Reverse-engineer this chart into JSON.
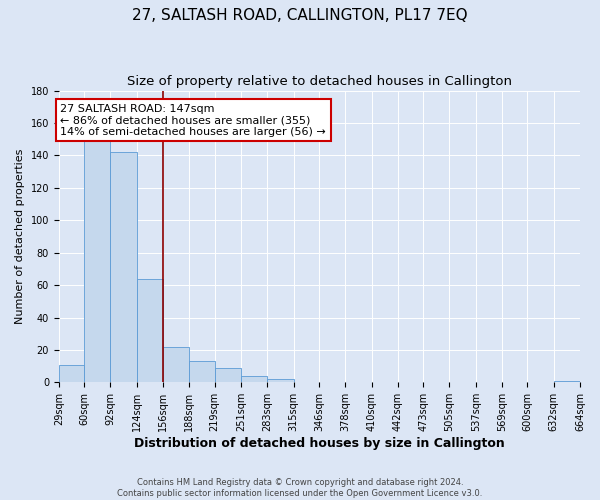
{
  "title": "27, SALTASH ROAD, CALLINGTON, PL17 7EQ",
  "subtitle": "Size of property relative to detached houses in Callington",
  "xlabel": "Distribution of detached houses by size in Callington",
  "ylabel": "Number of detached properties",
  "footer_lines": [
    "Contains HM Land Registry data © Crown copyright and database right 2024.",
    "Contains public sector information licensed under the Open Government Licence v3.0."
  ],
  "bin_edges": [
    29,
    60,
    92,
    124,
    156,
    188,
    219,
    251,
    283,
    315,
    346,
    378,
    410,
    442,
    473,
    505,
    537,
    569,
    600,
    632,
    664
  ],
  "bin_labels": [
    "29sqm",
    "60sqm",
    "92sqm",
    "124sqm",
    "156sqm",
    "188sqm",
    "219sqm",
    "251sqm",
    "283sqm",
    "315sqm",
    "346sqm",
    "378sqm",
    "410sqm",
    "442sqm",
    "473sqm",
    "505sqm",
    "537sqm",
    "569sqm",
    "600sqm",
    "632sqm",
    "664sqm"
  ],
  "counts": [
    11,
    150,
    142,
    64,
    22,
    13,
    9,
    4,
    2,
    0,
    0,
    0,
    0,
    0,
    0,
    0,
    0,
    0,
    0,
    1
  ],
  "bar_color": "#c5d8ed",
  "bar_edge_color": "#5b9bd5",
  "red_line_x": 156,
  "annotation_title": "27 SALTASH ROAD: 147sqm",
  "annotation_line1": "← 86% of detached houses are smaller (355)",
  "annotation_line2": "14% of semi-detached houses are larger (56) →",
  "annotation_box_color": "#ffffff",
  "annotation_box_edge_color": "#cc0000",
  "red_line_color": "#8b0000",
  "ylim": [
    0,
    180
  ],
  "yticks": [
    0,
    20,
    40,
    60,
    80,
    100,
    120,
    140,
    160,
    180
  ],
  "bg_color": "#dce6f5",
  "grid_color": "#ffffff",
  "title_fontsize": 11,
  "subtitle_fontsize": 9.5,
  "xlabel_fontsize": 9,
  "ylabel_fontsize": 8,
  "tick_fontsize": 7,
  "annotation_fontsize": 8,
  "footer_fontsize": 6
}
